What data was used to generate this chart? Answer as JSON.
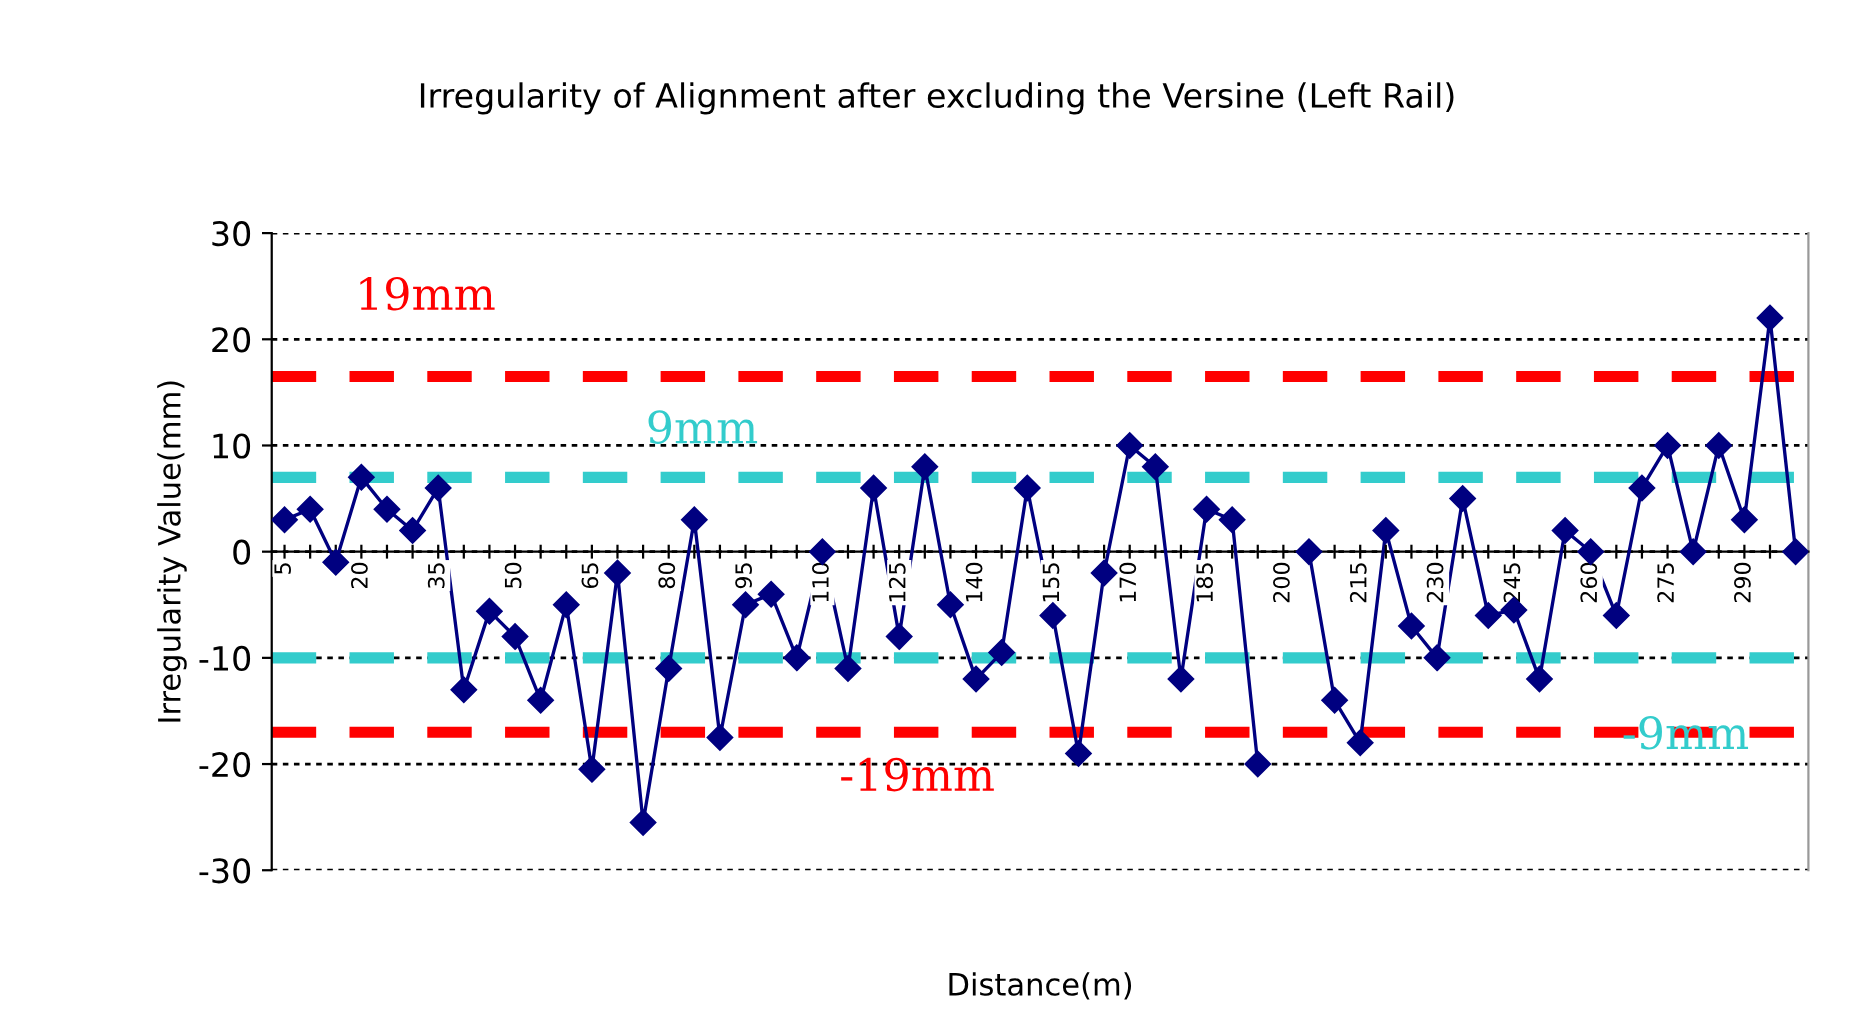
{
  "chart_data": {
    "type": "line",
    "title": "Irregularity of Alignment after excluding the Versine (Left Rail)",
    "xlabel": "Distance(m)",
    "ylabel": "Irregularity Value(mm)",
    "categories": [
      "5",
      null,
      null,
      "20",
      null,
      null,
      "35",
      null,
      null,
      "50",
      null,
      null,
      "65",
      null,
      null,
      "80",
      null,
      null,
      "95",
      null,
      null,
      "110",
      null,
      null,
      "125",
      null,
      null,
      "140",
      null,
      null,
      "155",
      null,
      null,
      "170",
      null,
      null,
      "185",
      null,
      null,
      "200",
      null,
      null,
      "215",
      null,
      null,
      "230",
      null,
      null,
      "245",
      null,
      null,
      "260",
      null,
      null,
      "275",
      null,
      null,
      "290",
      null,
      null
    ],
    "series": [
      {
        "color": "#000080",
        "values": [
          3,
          4,
          -1,
          7,
          4,
          2,
          6,
          -13,
          -5.6,
          -8,
          -14,
          -5,
          -20.5,
          -2,
          -25.5,
          -11,
          3,
          -17.5,
          -5,
          -4,
          -10,
          0,
          -11,
          6,
          -8,
          8,
          -5,
          -12,
          -9.5,
          6,
          -6,
          -19,
          -2,
          10,
          8,
          -12,
          4,
          3,
          -20,
          null,
          0,
          -14,
          -18,
          2,
          -7,
          -10,
          5,
          -6,
          -5.5,
          -12,
          2,
          0,
          -6,
          6,
          10,
          0,
          10,
          3,
          22,
          0
        ]
      }
    ],
    "ylim": [
      -30,
      30
    ],
    "yticks": [
      -30,
      -20,
      -10,
      0,
      10,
      20,
      30
    ],
    "grid": "y",
    "marker": "diamond",
    "line_style": "solid",
    "legend": false,
    "ref_lines": [
      {
        "axis": "y",
        "value": 16.5,
        "label": "19mm",
        "color": "#ff0000",
        "line_style": "dashed"
      },
      {
        "axis": "y",
        "value": 7,
        "label": "9mm",
        "color": "#33cccc",
        "line_style": "dashed"
      },
      {
        "axis": "y",
        "value": -10,
        "label": "-9mm",
        "color": "#33cccc",
        "line_style": "dashed"
      },
      {
        "axis": "y",
        "value": -17,
        "label": "-19mm",
        "color": "#ff0000",
        "line_style": "dashed"
      }
    ]
  }
}
